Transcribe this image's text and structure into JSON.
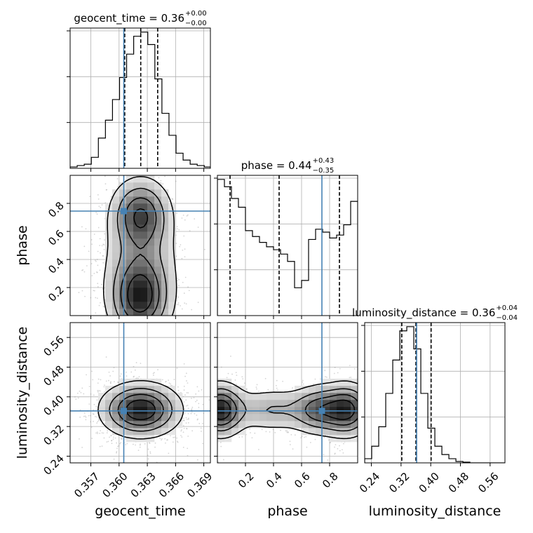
{
  "chart_data": {
    "type": "corner",
    "parameters": [
      "geocent_time",
      "phase",
      "luminosity_distance"
    ],
    "truths": {
      "geocent_time": 0.3605,
      "phase": 0.745,
      "luminosity_distance": 0.362
    },
    "truth_color": "#4682b4",
    "grid": true,
    "titles": [
      {
        "param": "geocent_time",
        "text": "geocent_time = 0.36",
        "sup": "+0.00",
        "sub": "−0.00"
      },
      {
        "param": "phase",
        "text": "phase = 0.44",
        "sup": "+0.43",
        "sub": "−0.35"
      },
      {
        "param": "luminosity_distance",
        "text": "luminosity_distance = 0.36",
        "sup": "+0.04",
        "sub": "−0.04"
      }
    ],
    "axes": {
      "geocent_time": {
        "label": "geocent_time",
        "lim": [
          0.3548,
          0.3697
        ],
        "ticks": [
          0.357,
          0.36,
          0.363,
          0.366,
          0.369
        ],
        "tick_labels": [
          "0.357",
          "0.360",
          "0.363",
          "0.366",
          "0.369"
        ]
      },
      "phase": {
        "label": "phase",
        "lim": [
          0.0,
          1.0
        ],
        "ticks": [
          0.2,
          0.4,
          0.6,
          0.8
        ],
        "tick_labels": [
          "0.2",
          "0.4",
          "0.6",
          "0.8"
        ]
      },
      "luminosity_distance": {
        "label": "luminosity_distance",
        "lim": [
          0.222,
          0.6
        ],
        "ticks": [
          0.24,
          0.32,
          0.4,
          0.48,
          0.56
        ],
        "tick_labels": [
          "0.24",
          "0.32",
          "0.40",
          "0.48",
          "0.56"
        ]
      }
    },
    "histograms": {
      "geocent_time": {
        "edges": [
          0.3548,
          0.35555,
          0.3563,
          0.35705,
          0.3578,
          0.35855,
          0.3593,
          0.36005,
          0.3608,
          0.36155,
          0.3623,
          0.36305,
          0.3638,
          0.36455,
          0.3653,
          0.36605,
          0.3668,
          0.36755,
          0.3683,
          0.36905,
          0.3697
        ],
        "counts": [
          1,
          2,
          3,
          8,
          22,
          35,
          50,
          66,
          83,
          96,
          99,
          90,
          65,
          40,
          24,
          11,
          6,
          3,
          2,
          1
        ],
        "quantile_lines": [
          0.3606,
          0.3623,
          0.3641
        ]
      },
      "phase": {
        "edges": [
          0.0,
          0.05,
          0.1,
          0.15,
          0.2,
          0.25,
          0.3,
          0.35,
          0.4,
          0.45,
          0.5,
          0.55,
          0.6,
          0.65,
          0.7,
          0.75,
          0.8,
          0.85,
          0.9,
          0.95,
          1.0
        ],
        "counts": [
          93,
          88,
          80,
          74,
          58,
          54,
          50,
          47,
          45,
          42,
          37,
          19,
          24,
          52,
          59,
          57,
          53,
          55,
          62,
          78
        ],
        "quantile_lines": [
          0.09,
          0.44,
          0.87
        ]
      },
      "luminosity_distance": {
        "edges": [
          0.222,
          0.24091,
          0.25982,
          0.27873,
          0.29764,
          0.31655,
          0.33546,
          0.35437,
          0.37328,
          0.39219,
          0.4111,
          0.43001,
          0.44892,
          0.46783,
          0.48674,
          0.50565,
          0.52456,
          0.54347,
          0.56238,
          0.58129,
          0.6
        ],
        "counts": [
          3,
          12,
          26,
          50,
          74,
          95,
          98,
          82,
          50,
          25,
          12,
          6,
          3,
          1,
          0.5,
          0,
          0,
          0,
          0,
          0
        ],
        "quantile_lines": [
          0.322,
          0.36,
          0.401
        ]
      }
    },
    "pairs": [
      {
        "x": "geocent_time",
        "y": "phase",
        "modes": [
          [
            0.3623,
            0.72,
            0.0017,
            0.14,
            1.0
          ],
          [
            0.3622,
            0.12,
            0.0018,
            0.16,
            1.15
          ],
          [
            0.3623,
            0.4,
            0.0022,
            0.2,
            0.45
          ]
        ]
      },
      {
        "x": "geocent_time",
        "y": "luminosity_distance",
        "modes": [
          [
            0.3623,
            0.365,
            0.0022,
            0.038,
            1.0
          ]
        ]
      },
      {
        "x": "phase",
        "y": "luminosity_distance",
        "modes": [
          [
            0.02,
            0.365,
            0.09,
            0.038,
            1.0
          ],
          [
            0.92,
            0.365,
            0.1,
            0.038,
            0.95
          ],
          [
            0.72,
            0.365,
            0.1,
            0.035,
            0.6
          ],
          [
            0.4,
            0.365,
            0.2,
            0.033,
            0.35
          ]
        ]
      }
    ],
    "contour_levels": [
      0.12,
      0.32,
      0.55,
      0.78
    ]
  }
}
